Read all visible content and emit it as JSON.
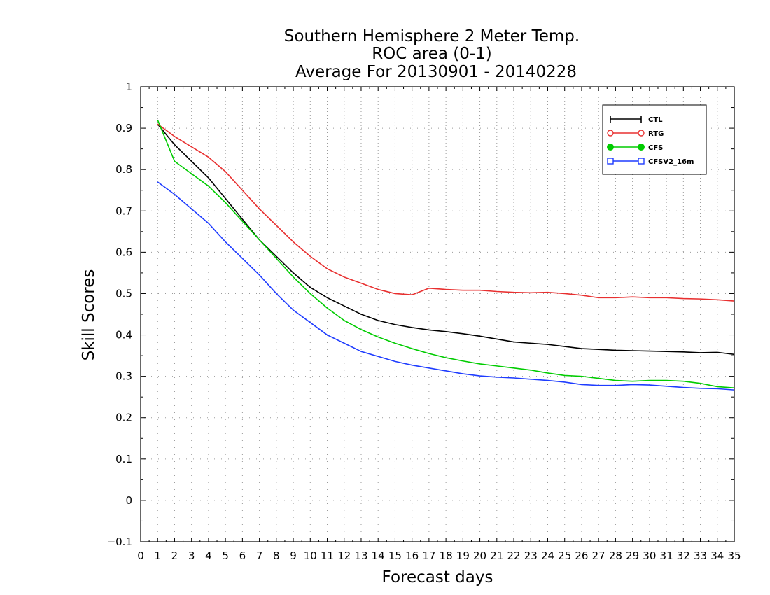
{
  "chart_data": {
    "type": "line",
    "title": [
      "Southern Hemisphere 2 Meter Temp.",
      "ROC area (0-1)",
      "Average For 20130901 - 20140228"
    ],
    "xlabel": "Forecast days",
    "ylabel": "Skill Scores",
    "xlim": [
      0,
      35
    ],
    "ylim": [
      -0.1,
      1
    ],
    "xticks": [
      0,
      1,
      2,
      3,
      4,
      5,
      6,
      7,
      8,
      9,
      10,
      11,
      12,
      13,
      14,
      15,
      16,
      17,
      18,
      19,
      20,
      21,
      22,
      23,
      24,
      25,
      26,
      27,
      28,
      29,
      30,
      31,
      32,
      33,
      34,
      35
    ],
    "yticks": [
      -0.1,
      0,
      0.1,
      0.2,
      0.3,
      0.4,
      0.5,
      0.6,
      0.7,
      0.8,
      0.9,
      1
    ],
    "ytick_labels": [
      "−0.1",
      "0",
      "0.1",
      "0.2",
      "0.3",
      "0.4",
      "0.5",
      "0.6",
      "0.7",
      "0.8",
      "0.9",
      "1"
    ],
    "grid": true,
    "legend_position": "top-right",
    "x": [
      1,
      2,
      3,
      4,
      5,
      6,
      7,
      8,
      9,
      10,
      11,
      12,
      13,
      14,
      15,
      16,
      17,
      18,
      19,
      20,
      21,
      22,
      23,
      24,
      25,
      26,
      27,
      28,
      29,
      30,
      31,
      32,
      33,
      34,
      35
    ],
    "series": [
      {
        "name": "CTL",
        "color": "#000000",
        "marker": "plus",
        "values": [
          0.91,
          0.86,
          0.82,
          0.78,
          0.73,
          0.68,
          0.63,
          0.59,
          0.55,
          0.515,
          0.49,
          0.47,
          0.45,
          0.435,
          0.425,
          0.418,
          0.412,
          0.408,
          0.403,
          0.397,
          0.39,
          0.383,
          0.38,
          0.377,
          0.372,
          0.367,
          0.365,
          0.363,
          0.362,
          0.361,
          0.36,
          0.359,
          0.357,
          0.358,
          0.353
        ]
      },
      {
        "name": "RTG",
        "color": "#e83030",
        "marker": "circle",
        "values": [
          0.91,
          0.88,
          0.855,
          0.83,
          0.795,
          0.75,
          0.705,
          0.665,
          0.625,
          0.59,
          0.56,
          0.54,
          0.525,
          0.51,
          0.5,
          0.497,
          0.513,
          0.51,
          0.508,
          0.508,
          0.505,
          0.503,
          0.502,
          0.503,
          0.5,
          0.496,
          0.49,
          0.49,
          0.492,
          0.49,
          0.49,
          0.488,
          0.487,
          0.485,
          0.482
        ]
      },
      {
        "name": "CFS",
        "color": "#00cc00",
        "marker": "filled-circle",
        "values": [
          0.92,
          0.82,
          0.79,
          0.76,
          0.72,
          0.675,
          0.63,
          0.585,
          0.54,
          0.5,
          0.465,
          0.435,
          0.413,
          0.395,
          0.38,
          0.367,
          0.355,
          0.345,
          0.337,
          0.33,
          0.325,
          0.32,
          0.315,
          0.308,
          0.302,
          0.3,
          0.295,
          0.29,
          0.288,
          0.29,
          0.29,
          0.288,
          0.283,
          0.275,
          0.272
        ]
      },
      {
        "name": "CFSV2_16m",
        "color": "#1e3cff",
        "marker": "square",
        "values": [
          0.77,
          0.74,
          0.705,
          0.67,
          0.625,
          0.585,
          0.545,
          0.5,
          0.46,
          0.43,
          0.4,
          0.38,
          0.36,
          0.348,
          0.336,
          0.327,
          0.32,
          0.313,
          0.306,
          0.301,
          0.298,
          0.296,
          0.293,
          0.29,
          0.286,
          0.28,
          0.278,
          0.278,
          0.28,
          0.279,
          0.276,
          0.273,
          0.271,
          0.27,
          0.267
        ]
      }
    ]
  }
}
